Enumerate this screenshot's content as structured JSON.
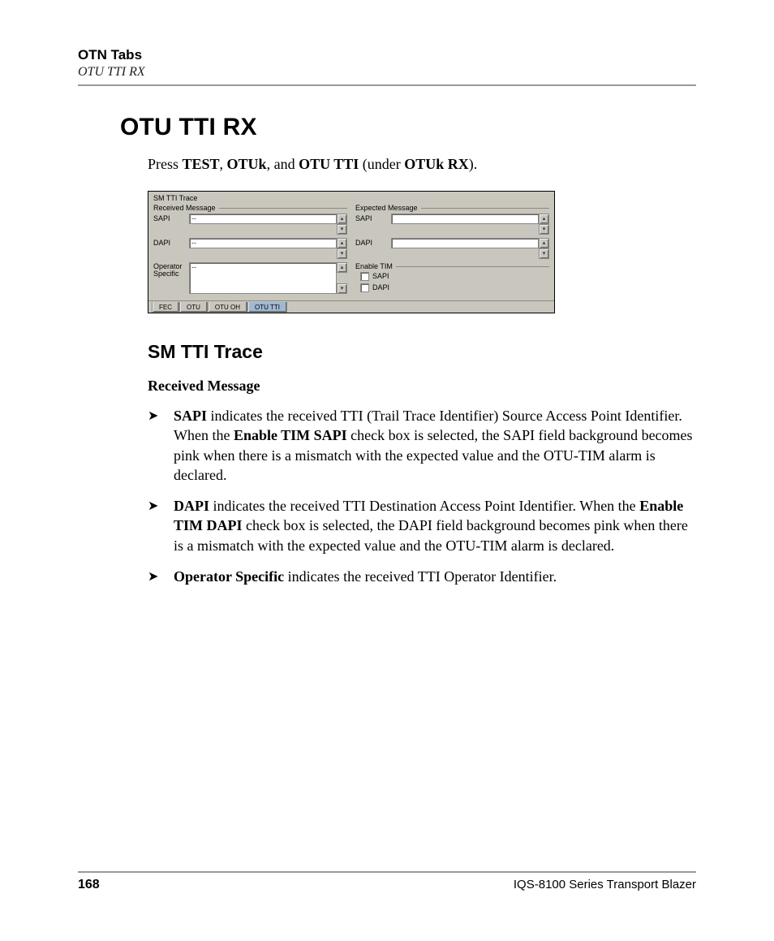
{
  "header": {
    "chapter": "OTN Tabs",
    "section_path": "OTU TTI RX"
  },
  "title": "OTU TTI RX",
  "intro": {
    "prefix": "Press ",
    "b1": "TEST",
    "sep1": ", ",
    "b2": "OTUk",
    "sep2": ", and ",
    "b3": "OTU TTI",
    "mid": " (under ",
    "b4": "OTUk RX",
    "suffix": ")."
  },
  "figure": {
    "grp_title": "SM TTI Trace",
    "received_hdr": "Received Message",
    "expected_hdr": "Expected Message",
    "sapi_label": "SAPI",
    "dapi_label": "DAPI",
    "op_label_1": "Operator",
    "op_label_2": "Specific",
    "dashdash": "--",
    "enable_tim_hdr": "Enable TIM",
    "chk_sapi": "SAPI",
    "chk_dapi": "DAPI",
    "tabs": {
      "fec": "FEC",
      "otu": "OTU",
      "otuoh": "OTU OH",
      "otutti": "OTU TTI"
    }
  },
  "subsection": "SM TTI Trace",
  "runin": "Received Message",
  "bullets": {
    "sapi": {
      "lead": "SAPI",
      "mid1": " indicates the received TTI (Trail Trace Identifier) Source Access Point Identifier. When the ",
      "b1": "Enable TIM SAPI",
      "rest": " check box is selected, the SAPI field background becomes pink when there is a mismatch with the expected value and the OTU-TIM alarm is declared."
    },
    "dapi": {
      "lead": "DAPI",
      "mid1": " indicates the received TTI Destination Access Point Identifier. When the ",
      "b1": "Enable TIM DAPI",
      "rest": " check box is selected, the DAPI field background becomes pink when there is a mismatch with the expected value and the OTU-TIM alarm is declared."
    },
    "op": {
      "lead": "Operator Specific",
      "rest": " indicates the received TTI Operator Identifier."
    }
  },
  "footer": {
    "page": "168",
    "product": "IQS-8100 Series Transport Blazer"
  }
}
